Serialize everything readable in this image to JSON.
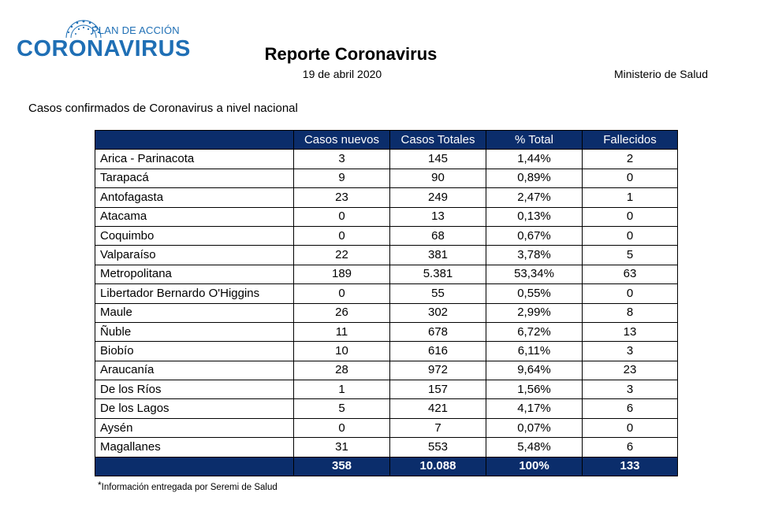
{
  "logo": {
    "top_text": "PLAN DE ACCIÓN",
    "main_text": "CORONAVIRUS",
    "brand_color": "#1f6fb5"
  },
  "header": {
    "title": "Reporte Coronavirus",
    "date": "19 de abril 2020",
    "ministry": "Ministerio de Salud"
  },
  "subtitle": "Casos confirmados de Coronavirus a nivel nacional",
  "table": {
    "header_color": "#0b2d6b",
    "columns": [
      "",
      "Casos nuevos",
      "Casos Totales",
      "% Total",
      "Fallecidos"
    ],
    "rows": [
      {
        "region": "Arica - Parinacota",
        "new": "3",
        "total": "145",
        "pct": "1,44%",
        "deaths": "2"
      },
      {
        "region": "Tarapacá",
        "new": "9",
        "total": "90",
        "pct": "0,89%",
        "deaths": "0"
      },
      {
        "region": "Antofagasta",
        "new": "23",
        "total": "249",
        "pct": "2,47%",
        "deaths": "1"
      },
      {
        "region": "Atacama",
        "new": "0",
        "total": "13",
        "pct": "0,13%",
        "deaths": "0"
      },
      {
        "region": "Coquimbo",
        "new": "0",
        "total": "68",
        "pct": "0,67%",
        "deaths": "0"
      },
      {
        "region": "Valparaíso",
        "new": "22",
        "total": "381",
        "pct": "3,78%",
        "deaths": "5"
      },
      {
        "region": "Metropolitana",
        "new": "189",
        "total": "5.381",
        "pct": "53,34%",
        "deaths": "63"
      },
      {
        "region": "Libertador Bernardo O'Higgins",
        "new": "0",
        "total": "55",
        "pct": "0,55%",
        "deaths": "0"
      },
      {
        "region": "Maule",
        "new": "26",
        "total": "302",
        "pct": "2,99%",
        "deaths": "8"
      },
      {
        "region": "Ñuble",
        "new": "11",
        "total": "678",
        "pct": "6,72%",
        "deaths": "13"
      },
      {
        "region": "Biobío",
        "new": "10",
        "total": "616",
        "pct": "6,11%",
        "deaths": "3"
      },
      {
        "region": "Araucanía",
        "new": "28",
        "total": "972",
        "pct": "9,64%",
        "deaths": "23"
      },
      {
        "region": "De los Ríos",
        "new": "1",
        "total": "157",
        "pct": "1,56%",
        "deaths": "3"
      },
      {
        "region": "De los Lagos",
        "new": "5",
        "total": "421",
        "pct": "4,17%",
        "deaths": "6"
      },
      {
        "region": "Aysén",
        "new": "0",
        "total": "7",
        "pct": "0,07%",
        "deaths": "0"
      },
      {
        "region": "Magallanes",
        "new": "31",
        "total": "553",
        "pct": "5,48%",
        "deaths": "6"
      }
    ],
    "totals": {
      "region": "",
      "new": "358",
      "total": "10.088",
      "pct": "100%",
      "deaths": "133"
    }
  },
  "footnote": {
    "marker": "*",
    "text": "Información entregada por Seremi de Salud"
  }
}
